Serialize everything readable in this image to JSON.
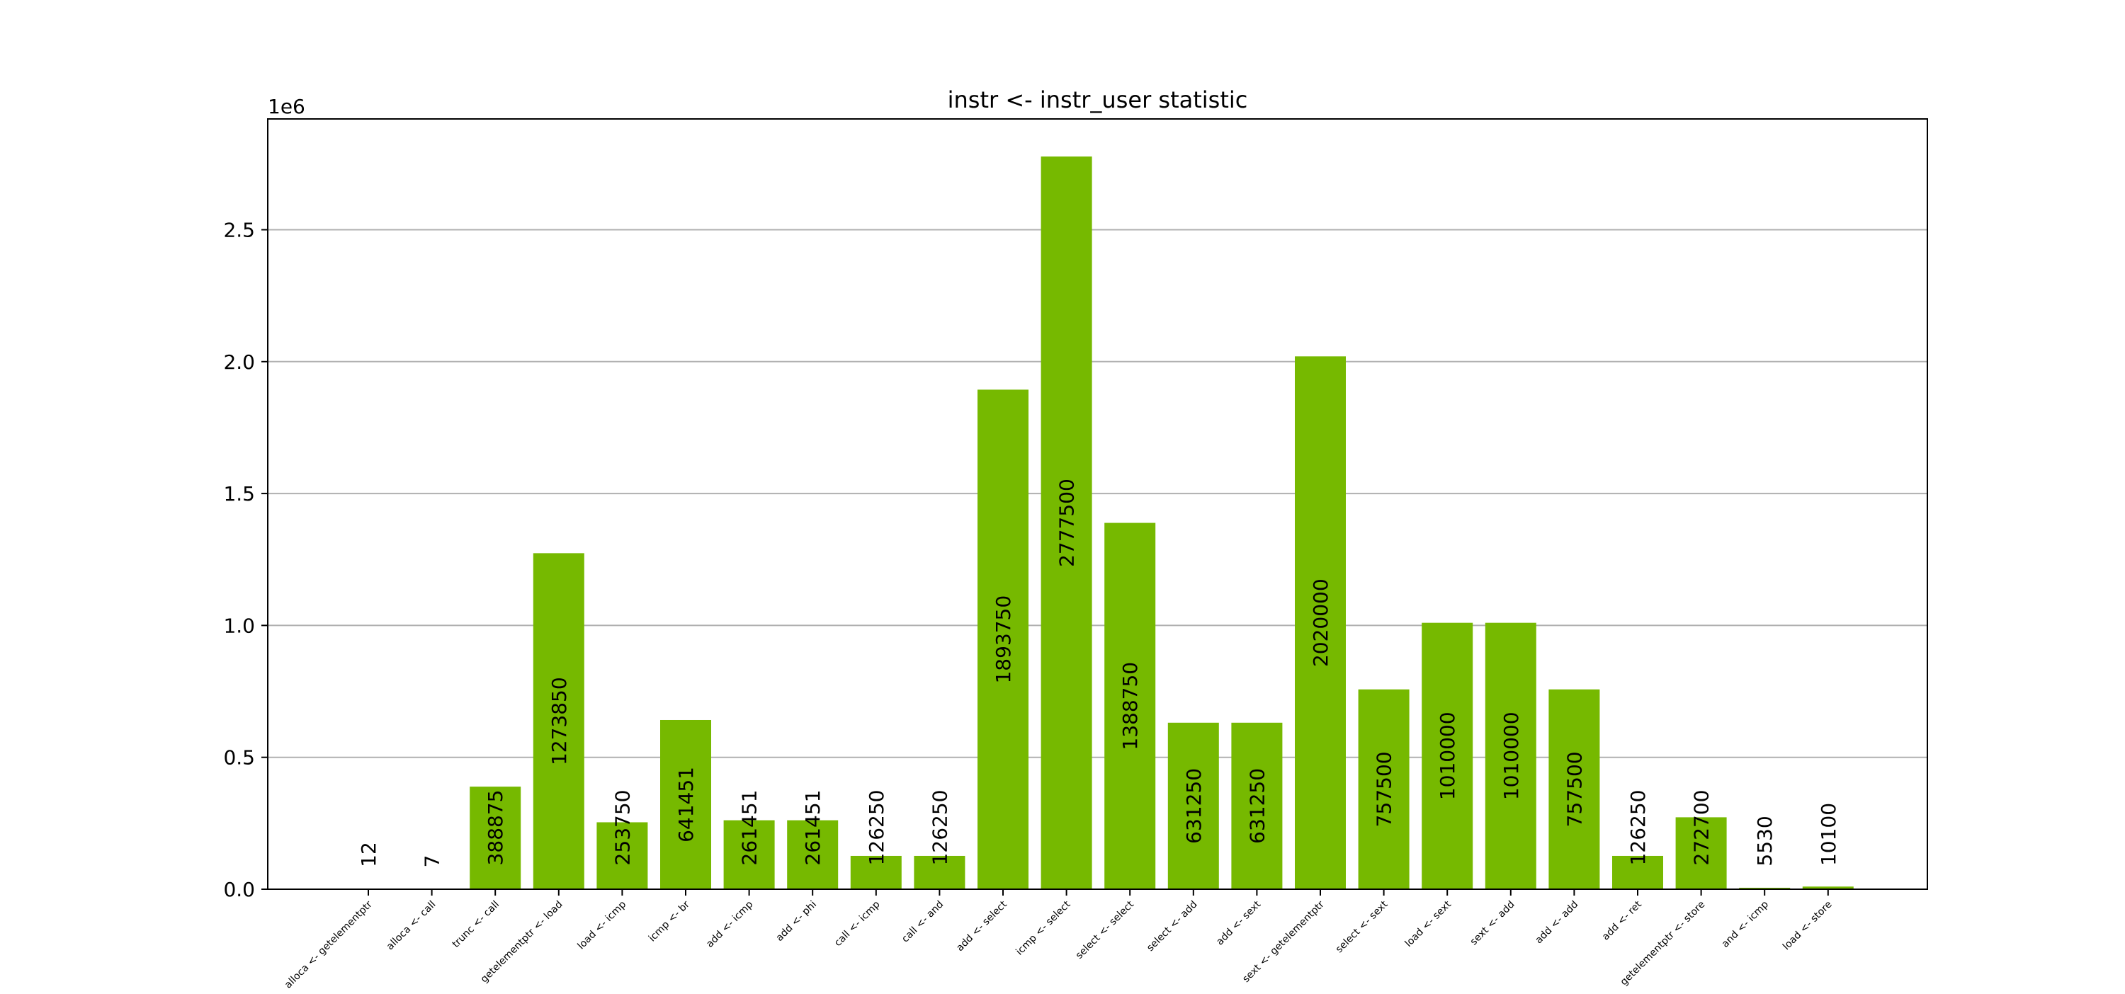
{
  "chart_data": {
    "type": "bar",
    "title": "instr <- instr_user statistic",
    "xlabel": "",
    "ylabel": "",
    "y_offset_label": "1e6",
    "ylim": [
      0,
      2920000
    ],
    "yticks": [
      0,
      500000,
      1000000,
      1500000,
      2000000,
      2500000
    ],
    "ytick_labels": [
      "0.0",
      "0.5",
      "1.0",
      "1.5",
      "2.0",
      "2.5"
    ],
    "grid": "y",
    "bar_color": "#76b900",
    "categories": [
      "alloca <- getelementptr",
      "alloca <- call",
      "trunc <- call",
      "getelementptr <- load",
      "load <- icmp",
      "icmp <- br",
      "add <- icmp",
      "add <- phi",
      "call <- icmp",
      "call <- and",
      "add <- select",
      "icmp <- select",
      "select <- select",
      "select <- add",
      "add <- sext",
      "sext <- getelementptr",
      "select <- sext",
      "load <- sext",
      "sext <- add",
      "add <- add",
      "add <- ret",
      "getelementptr <- store",
      "and <- icmp",
      "load <- store"
    ],
    "values": [
      12,
      7,
      388875,
      1273850,
      253750,
      641451,
      261451,
      261451,
      126250,
      126250,
      1893750,
      2777500,
      1388750,
      631250,
      631250,
      2020000,
      757500,
      1010000,
      1010000,
      757500,
      126250,
      272700,
      5530,
      10100
    ],
    "value_labels": [
      "12",
      "7",
      "388875",
      "1273850",
      "253750",
      "641451",
      "261451",
      "261451",
      "126250",
      "126250",
      "1893750",
      "2777500",
      "1388750",
      "631250",
      "631250",
      "2020000",
      "757500",
      "1010000",
      "1010000",
      "757500",
      "126250",
      "272700",
      "5530",
      "10100"
    ]
  }
}
